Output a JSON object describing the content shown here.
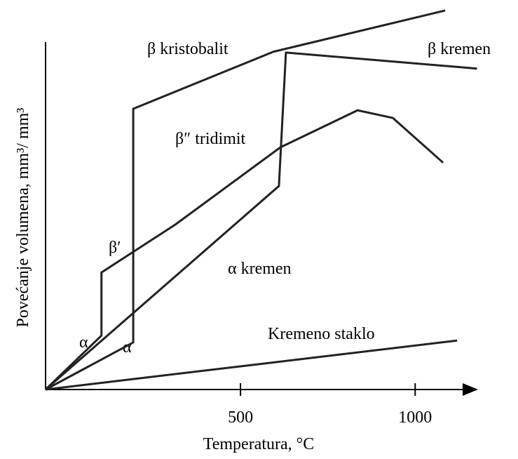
{
  "chart_data": {
    "type": "line",
    "x_label": "Temperatura, °C",
    "y_label": "Povećanje volumena, mm³/ mm³",
    "xlim": [
      -60,
      1180
    ],
    "ylim": [
      0,
      100
    ],
    "xticks": [
      500,
      1000
    ],
    "series": [
      {
        "color": "#222222",
        "x": [
          -58,
          193,
          193,
          594,
          1086
        ],
        "values": [
          0,
          12.3,
          73.4,
          88.3,
          99.1
        ]
      },
      {
        "color": "#222222",
        "x": [
          -58,
          610,
          630,
          1177
        ],
        "values": [
          0,
          53.2,
          88.1,
          83.9
        ]
      },
      {
        "color": "#222222",
        "x": [
          -58,
          102,
          102,
          313,
          614,
          835,
          936,
          1080
        ],
        "values": [
          0,
          14.1,
          30.6,
          43.1,
          63.3,
          73,
          71,
          59.3
        ]
      },
      {
        "color": "#222222",
        "x": [
          -58,
          1120
        ],
        "values": [
          0,
          12.8
        ]
      }
    ],
    "annotations": [
      "β kristobalit",
      "β kremen",
      "β″ tridimit",
      "β′",
      "α kremen",
      "α",
      "α",
      "Kremeno staklo"
    ]
  }
}
